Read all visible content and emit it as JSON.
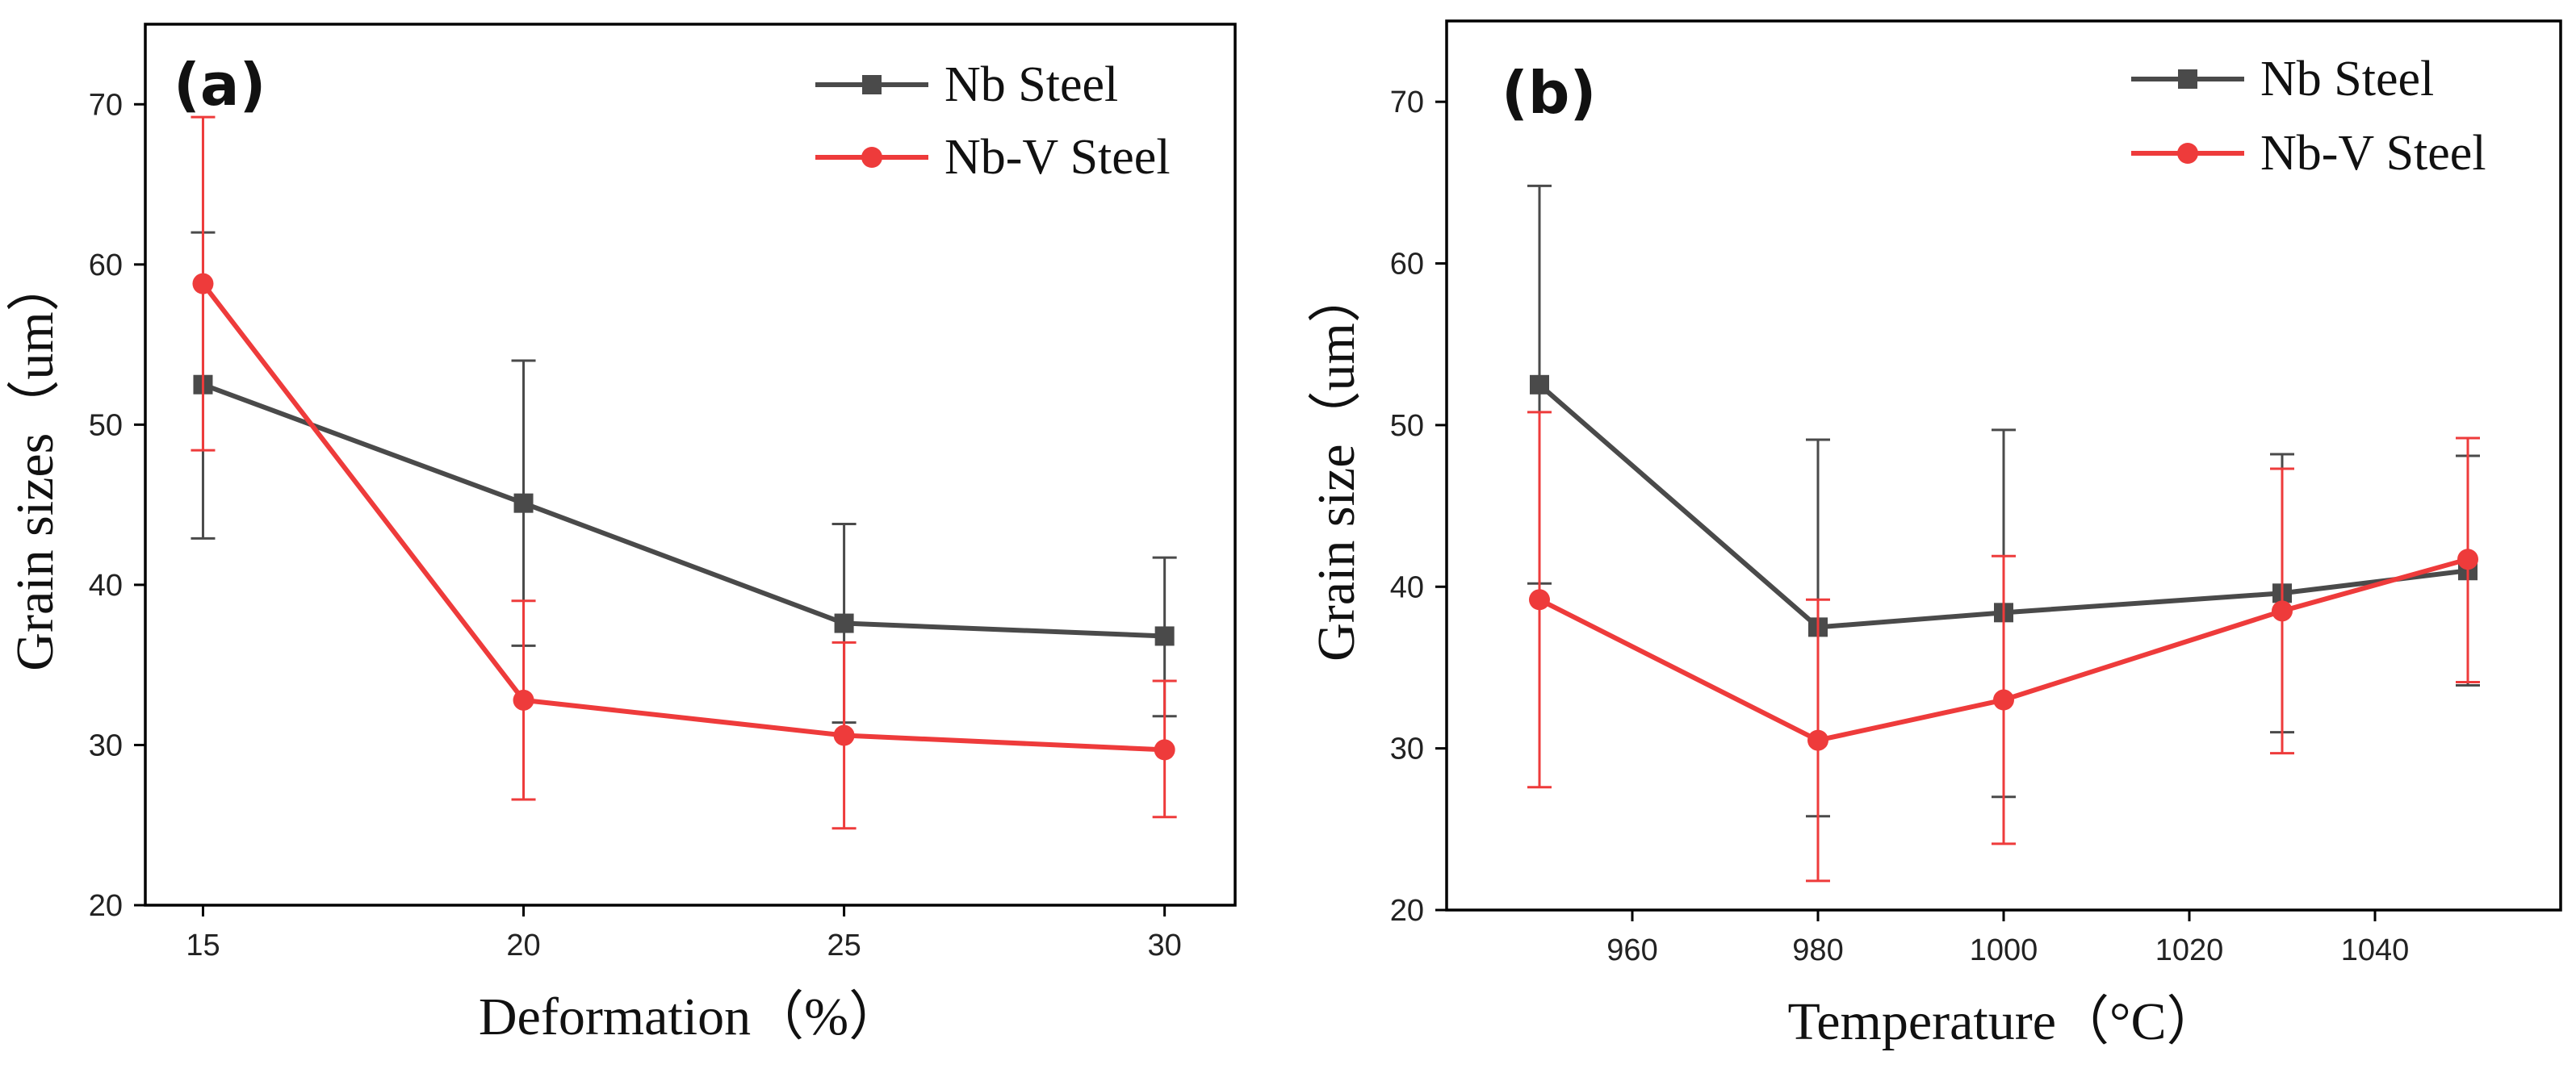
{
  "chart_data": [
    {
      "id": "a",
      "type": "line",
      "panel_label": "(a)",
      "title": "",
      "xlabel": "Deformation（%）",
      "ylabel": "Grain sizes（um）",
      "xlim": [
        14.1,
        31.1
      ],
      "ylim": [
        20,
        75
      ],
      "xticks": [
        15,
        20,
        25,
        30
      ],
      "yticks": [
        20,
        30,
        40,
        50,
        60,
        70
      ],
      "legend_position": "top-right",
      "series": [
        {
          "name": "Nb Steel",
          "color": "#4a4a4a",
          "marker": "square",
          "x": [
            15,
            20,
            25,
            30
          ],
          "y": [
            52.5,
            45.1,
            37.6,
            36.8
          ],
          "err_low": [
            42.9,
            36.2,
            31.4,
            31.8
          ],
          "err_high": [
            62.0,
            54.0,
            43.8,
            41.7
          ]
        },
        {
          "name": "Nb-V Steel",
          "color": "#ee3b3b",
          "marker": "circle",
          "x": [
            15,
            20,
            25,
            30
          ],
          "y": [
            58.8,
            32.8,
            30.6,
            29.7
          ],
          "err_low": [
            48.4,
            26.6,
            24.8,
            25.5
          ],
          "err_high": [
            69.2,
            39.0,
            36.4,
            34.0
          ]
        }
      ]
    },
    {
      "id": "b",
      "type": "line",
      "panel_label": "(b)",
      "title": "",
      "xlabel": "Temperature（°C）",
      "ylabel": "Grain size（um）",
      "xlim": [
        940,
        1060
      ],
      "ylim": [
        20,
        75
      ],
      "xticks": [
        960,
        980,
        1000,
        1020,
        1040
      ],
      "yticks": [
        20,
        30,
        40,
        50,
        60,
        70
      ],
      "legend_position": "top-right",
      "series": [
        {
          "name": "Nb Steel",
          "color": "#4a4a4a",
          "marker": "square",
          "x": [
            950,
            980,
            1000,
            1030,
            1050
          ],
          "y": [
            52.5,
            37.5,
            38.4,
            39.6,
            41.0
          ],
          "err_low": [
            40.2,
            25.8,
            27.0,
            31.0,
            33.9
          ],
          "err_high": [
            64.8,
            49.1,
            49.7,
            48.2,
            48.1
          ]
        },
        {
          "name": "Nb-V Steel",
          "color": "#ee3b3b",
          "marker": "circle",
          "x": [
            950,
            980,
            1000,
            1030,
            1050
          ],
          "y": [
            39.2,
            30.5,
            33.0,
            38.5,
            41.7
          ],
          "err_low": [
            27.6,
            21.8,
            24.1,
            29.7,
            34.1
          ],
          "err_high": [
            50.8,
            39.2,
            41.9,
            47.3,
            49.2
          ]
        }
      ]
    }
  ]
}
